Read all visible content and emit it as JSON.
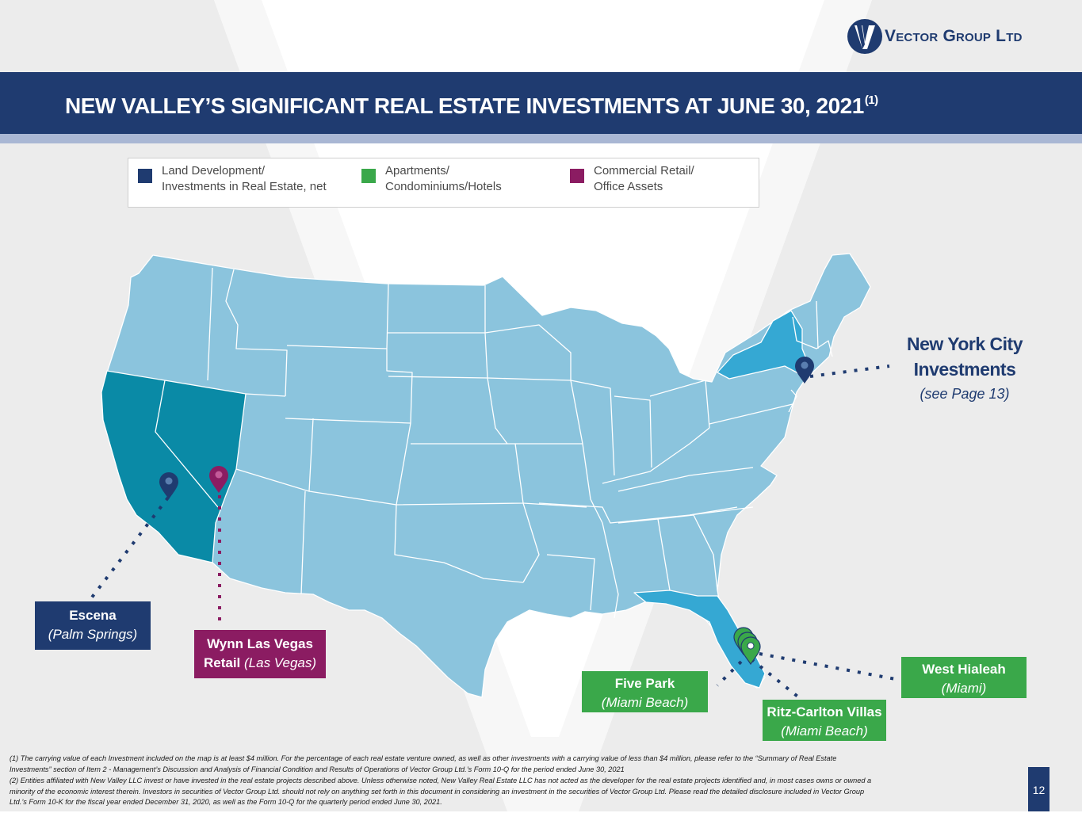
{
  "logo": {
    "text": "Vector Group Ltd",
    "mark": "v-logo-icon"
  },
  "title": {
    "main": "NEW VALLEY’S SIGNIFICANT REAL ESTATE INVESTMENTS AT JUNE 30, 2021",
    "footnote_ref": "(1)"
  },
  "legend": {
    "items": [
      {
        "line1": "Land Development/",
        "line2": "Investments in Real Estate, net",
        "color": "#1f3b70"
      },
      {
        "line1": "Apartments/",
        "line2": "Condominiums/Hotels",
        "color": "#3aa84a"
      },
      {
        "line1": "Commercial Retail/",
        "line2": "Office Assets",
        "color": "#8b1c62"
      }
    ]
  },
  "map": {
    "base_color": "#8bc4dd",
    "highlight_west_color": "#0a8aa6",
    "highlight_east_color": "#35a8d3"
  },
  "callouts": {
    "escena": {
      "name": "Escena",
      "place": "(Palm Springs)"
    },
    "wynn": {
      "name_line1": "Wynn Las Vegas",
      "name_line2": "Retail",
      "place": "(Las Vegas)"
    },
    "five_park": {
      "name": "Five Park",
      "place": "(Miami Beach)"
    },
    "ritz": {
      "name": "Ritz-Carlton Villas",
      "place": "(Miami Beach)"
    },
    "west_hialeah": {
      "name": "West Hialeah",
      "place": "(Miami)"
    },
    "nyc": {
      "line1": "New York City",
      "line2": "Investments",
      "note": "(see Page 13)"
    }
  },
  "footnotes": {
    "f1_line1": "(1) The carrying value of each Investment included on the map is at least $4 million.  For the percentage of each real estate venture owned, as well as other investments with a carrying value of less than $4 million, please refer to the “Summary of Real Estate",
    "f1_line2": "Investments” section of Item 2 - Management’s Discussion and Analysis of Financial Condition and Results of Operations of Vector Group Ltd.’s Form 10-Q for the period ended June 30, 2021",
    "f2_line1": "(2) Entities affiliated with New Valley LLC invest or have invested in the real estate projects described above. Unless otherwise noted, New Valley Real Estate LLC has not acted as the developer for the real estate projects identified and, in most cases owns or owned a",
    "f2_line2": "minority of the economic interest therein.  Investors in securities of Vector Group Ltd. should not rely on anything set forth in this document in considering an investment in the securities of Vector Group Ltd.  Please read the detailed disclosure included in Vector Group",
    "f2_line3": "Ltd.’s Form 10-K for the fiscal year ended December 31, 2020, as well as the Form 10-Q for the quarterly period ended June 30, 2021."
  },
  "page_number": "12"
}
